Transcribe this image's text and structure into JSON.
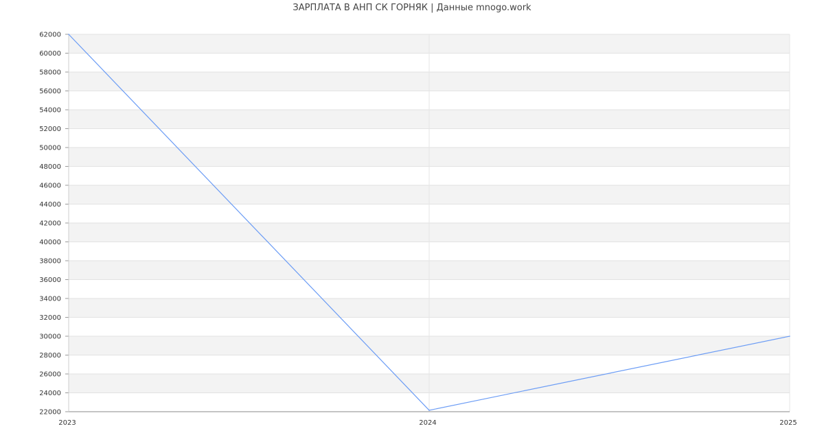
{
  "chart_data": {
    "type": "line",
    "title": "ЗАРПЛАТА В АНП СК ГОРНЯК | Данные mnogo.work",
    "x": [
      "2023",
      "2024",
      "2025"
    ],
    "series": [
      {
        "values": [
          62000,
          22150,
          30000
        ],
        "color": "#6b9cf5"
      }
    ],
    "ylim": [
      22000,
      62000
    ],
    "yticks": [
      22000,
      24000,
      26000,
      28000,
      30000,
      32000,
      34000,
      36000,
      38000,
      40000,
      42000,
      44000,
      46000,
      48000,
      50000,
      52000,
      54000,
      56000,
      58000,
      60000,
      62000
    ],
    "grid": true,
    "band_color": "#f3f3f3",
    "xlabel": "",
    "ylabel": ""
  }
}
